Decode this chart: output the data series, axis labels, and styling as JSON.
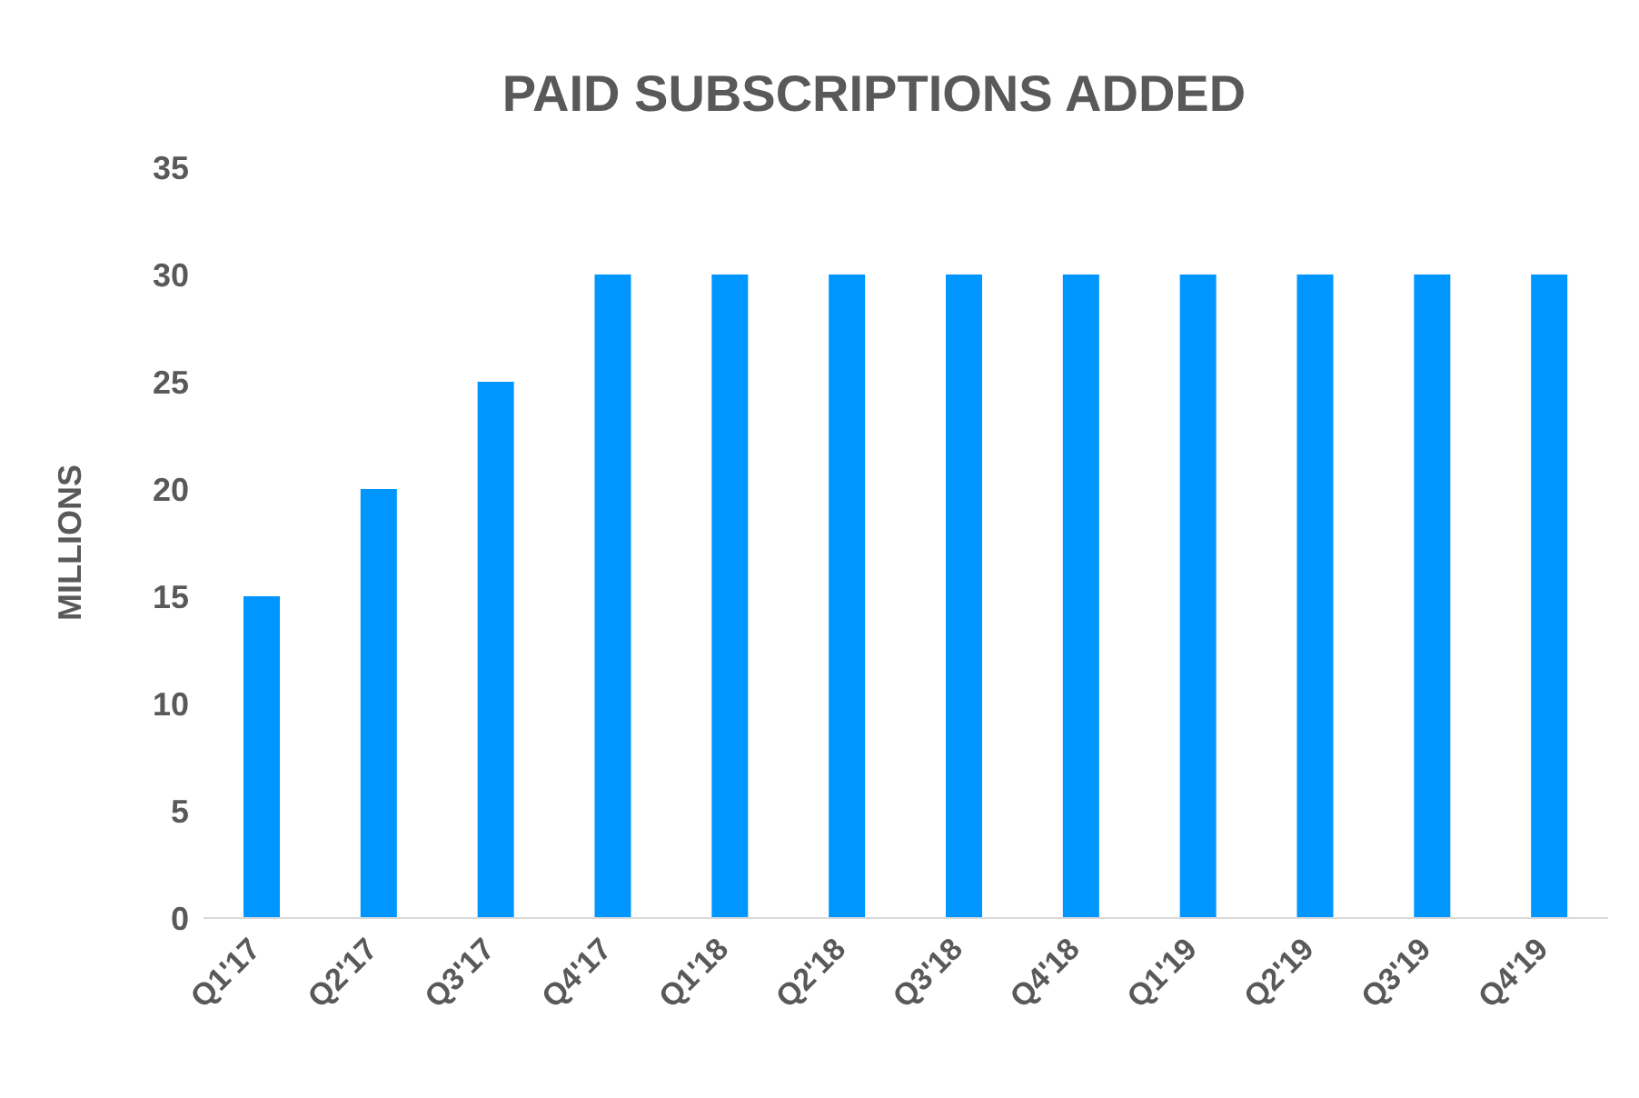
{
  "chart_data": {
    "type": "bar",
    "title": "PAID SUBSCRIPTIONS ADDED",
    "ylabel": "MILLIONS",
    "categories": [
      "Q1'17",
      "Q2'17",
      "Q3'17",
      "Q4'17",
      "Q1'18",
      "Q2'18",
      "Q3'18",
      "Q4'18",
      "Q1'19",
      "Q2'19",
      "Q3'19",
      "Q4'19"
    ],
    "values": [
      15,
      20,
      25,
      30,
      30,
      30,
      30,
      30,
      30,
      30,
      30,
      30
    ],
    "color": "#0096ff",
    "ylim": [
      0,
      35
    ],
    "yticks": [
      0,
      5,
      10,
      15,
      20,
      25,
      30,
      35
    ],
    "grid": false,
    "legend": false
  }
}
